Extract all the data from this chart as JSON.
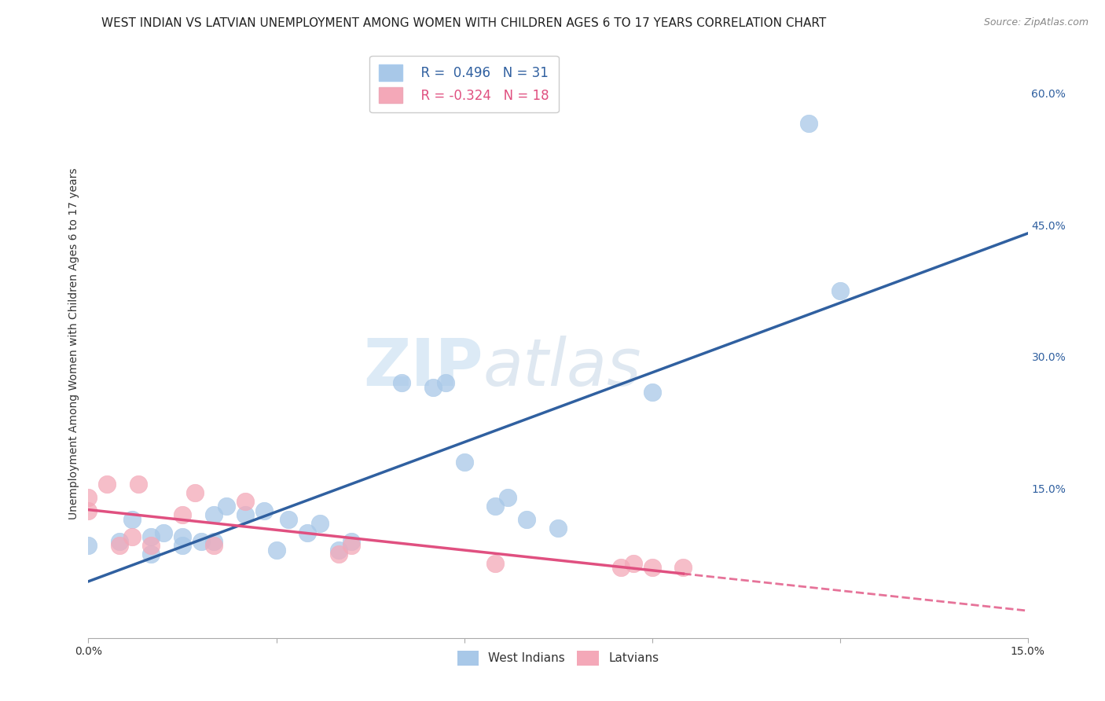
{
  "title": "WEST INDIAN VS LATVIAN UNEMPLOYMENT AMONG WOMEN WITH CHILDREN AGES 6 TO 17 YEARS CORRELATION CHART",
  "source": "Source: ZipAtlas.com",
  "ylabel": "Unemployment Among Women with Children Ages 6 to 17 years",
  "xlim": [
    0.0,
    0.15
  ],
  "ylim": [
    -0.02,
    0.65
  ],
  "xticks": [
    0.0,
    0.03,
    0.06,
    0.09,
    0.12,
    0.15
  ],
  "yticks_right": [
    0.15,
    0.3,
    0.45,
    0.6
  ],
  "blue_R": 0.496,
  "blue_N": 31,
  "pink_R": -0.324,
  "pink_N": 18,
  "blue_color": "#a8c8e8",
  "pink_color": "#f4a8b8",
  "blue_line_color": "#3060a0",
  "pink_line_color": "#e05080",
  "watermark_zip": "ZIP",
  "watermark_atlas": "atlas",
  "blue_points_x": [
    0.0,
    0.005,
    0.007,
    0.01,
    0.01,
    0.012,
    0.015,
    0.015,
    0.018,
    0.02,
    0.02,
    0.022,
    0.025,
    0.028,
    0.03,
    0.032,
    0.035,
    0.037,
    0.04,
    0.042,
    0.05,
    0.055,
    0.057,
    0.06,
    0.065,
    0.067,
    0.07,
    0.075,
    0.09,
    0.115,
    0.12
  ],
  "blue_points_y": [
    0.085,
    0.09,
    0.115,
    0.075,
    0.095,
    0.1,
    0.085,
    0.095,
    0.09,
    0.09,
    0.12,
    0.13,
    0.12,
    0.125,
    0.08,
    0.115,
    0.1,
    0.11,
    0.08,
    0.09,
    0.27,
    0.265,
    0.27,
    0.18,
    0.13,
    0.14,
    0.115,
    0.105,
    0.26,
    0.565,
    0.375
  ],
  "pink_points_x": [
    0.0,
    0.0,
    0.003,
    0.005,
    0.007,
    0.008,
    0.01,
    0.015,
    0.017,
    0.02,
    0.025,
    0.04,
    0.042,
    0.065,
    0.085,
    0.087,
    0.09,
    0.095
  ],
  "pink_points_y": [
    0.125,
    0.14,
    0.155,
    0.085,
    0.095,
    0.155,
    0.085,
    0.12,
    0.145,
    0.085,
    0.135,
    0.075,
    0.085,
    0.065,
    0.06,
    0.065,
    0.06,
    0.06
  ],
  "background_color": "#ffffff",
  "grid_color": "#cccccc",
  "title_fontsize": 11,
  "axis_fontsize": 10,
  "tick_fontsize": 10
}
